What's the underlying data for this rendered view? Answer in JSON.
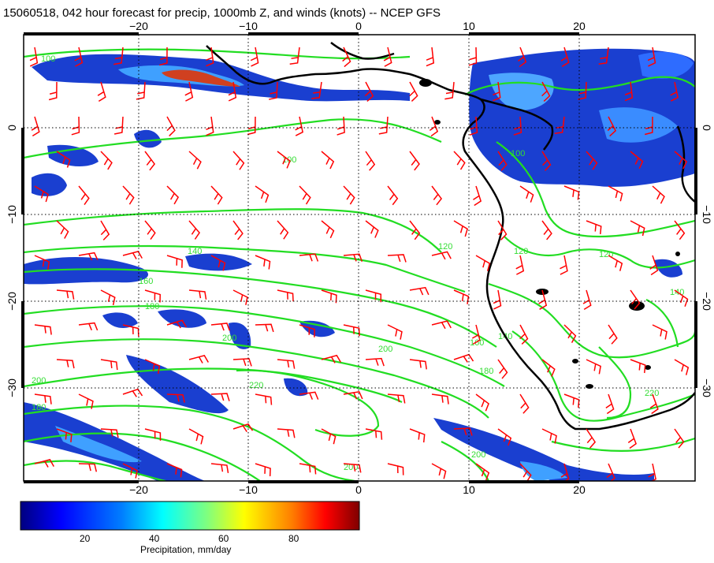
{
  "title": "15060518, 042 hour forecast for precip, 1000mb Z, and winds (knots) -- NCEP GFS",
  "map": {
    "lon_ticks": [
      "−20",
      "−10",
      "0",
      "10",
      "20"
    ],
    "lat_ticks": [
      "0",
      "−10",
      "−20",
      "−30"
    ],
    "contour_labels": [
      "100",
      "100",
      "100",
      "120",
      "120",
      "120",
      "140",
      "140",
      "140",
      "160",
      "160",
      "180",
      "180",
      "180",
      "200",
      "200",
      "200",
      "200",
      "200",
      "220",
      "220"
    ],
    "colors": {
      "contour": "#22dd22",
      "wind_barb": "#ff0000",
      "coast": "#000000",
      "grid": "#000000"
    }
  },
  "colorbar": {
    "label": "Precipitation, mm/day",
    "ticks": [
      "20",
      "40",
      "60",
      "80"
    ],
    "colors": [
      "#00007f",
      "#0000ff",
      "#007fff",
      "#00ffff",
      "#7fff7f",
      "#ffff00",
      "#ff7f00",
      "#ff0000",
      "#7f0000"
    ]
  }
}
